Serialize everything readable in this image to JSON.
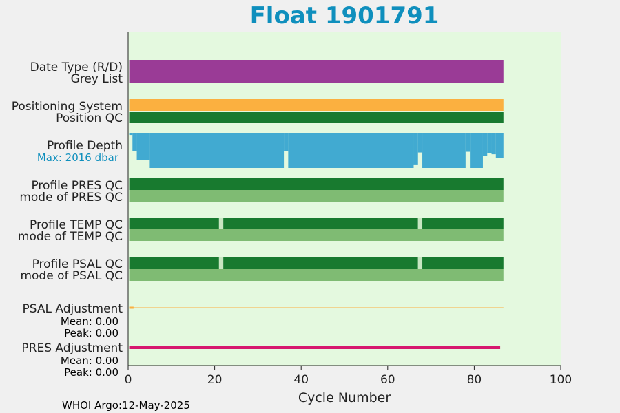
{
  "chart_data": {
    "type": "bar",
    "title": "Float 1901791",
    "xlabel": "Cycle Number",
    "xlim": [
      0,
      100
    ],
    "xticks": [
      0,
      20,
      40,
      60,
      80,
      100
    ],
    "last_cycle": 86,
    "footer": "WHOI Argo:12-May-2025",
    "colors": {
      "plot_bg": "#e4f9df",
      "page_bg": "#f0f0f0",
      "title": "#0f8fbd",
      "date_type": "#9a3b96",
      "positioning": "#fbb040",
      "qc_good": "#187a2f",
      "qc_mode": "#7fbb73",
      "qc_gap": "#c8e6c2",
      "depth": "#41aad1",
      "psal_adj": "#fbb040",
      "pres_adj": "#d6186f"
    },
    "rows": {
      "date_type": {
        "label": "Date Type (R/D)"
      },
      "grey_list": {
        "label": "Grey List"
      },
      "positioning": {
        "label": "Positioning System"
      },
      "position_qc": {
        "label": "Position QC"
      },
      "profile_depth": {
        "label": "Profile Depth",
        "max_label": "Max: 2016 dbar",
        "relative_depth": [
          {
            "from": 0,
            "to": 1,
            "value": 0.06
          },
          {
            "from": 1,
            "to": 2,
            "value": 0.52
          },
          {
            "from": 2,
            "to": 5,
            "value": 0.78
          },
          {
            "from": 5,
            "to": 36,
            "value": 1.0
          },
          {
            "from": 36,
            "to": 37,
            "value": 0.52
          },
          {
            "from": 37,
            "to": 66,
            "value": 1.0
          },
          {
            "from": 66,
            "to": 67,
            "value": 0.9
          },
          {
            "from": 67,
            "to": 68,
            "value": 0.56
          },
          {
            "from": 68,
            "to": 78,
            "value": 1.0
          },
          {
            "from": 78,
            "to": 79,
            "value": 0.54
          },
          {
            "from": 79,
            "to": 82,
            "value": 1.0
          },
          {
            "from": 82,
            "to": 83,
            "value": 0.65
          },
          {
            "from": 83,
            "to": 84,
            "value": 0.58
          },
          {
            "from": 84,
            "to": 85,
            "value": 0.61
          },
          {
            "from": 85,
            "to": 86,
            "value": 0.71
          }
        ]
      },
      "pres_qc": {
        "label": "Profile PRES QC",
        "mode_label": "mode of PRES QC",
        "gaps": []
      },
      "temp_qc": {
        "label": "Profile TEMP QC",
        "mode_label": "mode of TEMP QC",
        "gaps": [
          21,
          67
        ]
      },
      "psal_qc": {
        "label": "Profile PSAL QC",
        "mode_label": "mode of PSAL QC",
        "gaps": [
          21,
          67
        ]
      },
      "psal_adjustment": {
        "label": "PSAL Adjustment",
        "mean": "Mean: 0.00",
        "peak": "Peak: 0.00"
      },
      "pres_adjustment": {
        "label": "PRES Adjustment",
        "mean": "Mean: 0.00",
        "peak": "Peak: 0.00"
      }
    }
  }
}
